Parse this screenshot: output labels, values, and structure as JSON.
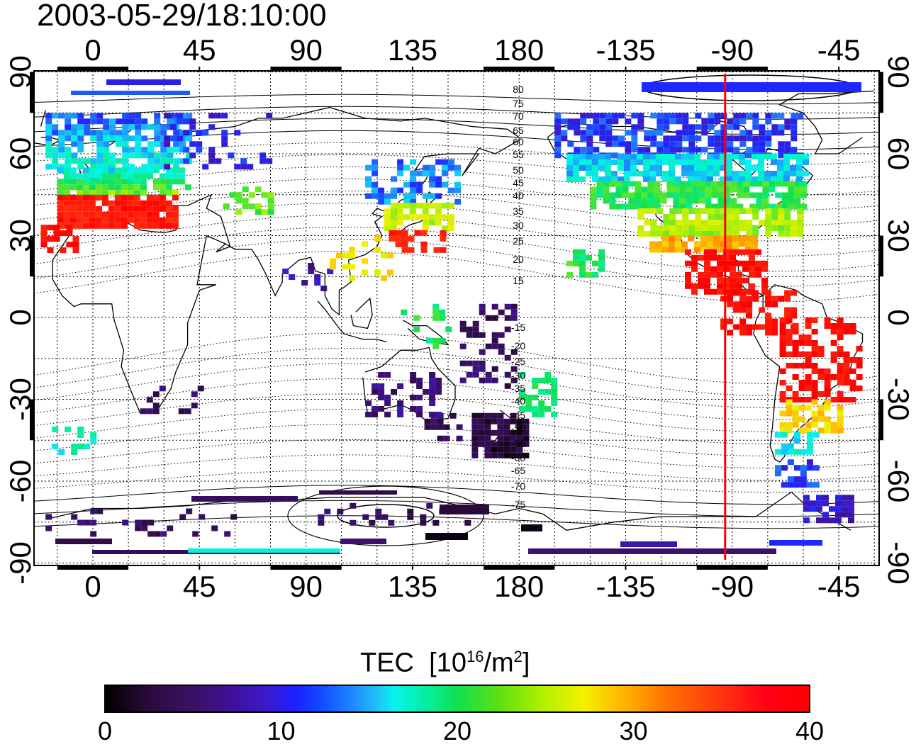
{
  "timestamp": "2003-05-29/18:10:00",
  "map": {
    "x_ticks_top": [
      "0",
      "45",
      "90",
      "135",
      "180",
      "-135",
      "-90",
      "-45"
    ],
    "x_ticks_bottom": [
      "0",
      "45",
      "90",
      "135",
      "180",
      "-135",
      "-90",
      "-45"
    ],
    "y_ticks_left": [
      "90",
      "60",
      "30",
      "0",
      "-30",
      "-60",
      "-90"
    ],
    "y_ticks_right": [
      "90",
      "60",
      "30",
      "0",
      "-30",
      "-60",
      "-90"
    ],
    "marker_longitude": -93,
    "marker_color": "#ff0000",
    "contour_labels_north": [
      "80",
      "75",
      "70",
      "65",
      "60",
      "55",
      "50",
      "45",
      "40",
      "35",
      "30",
      "25",
      "20",
      "15"
    ],
    "contour_labels_south": [
      "-15",
      "-20",
      "-25",
      "-30",
      "-35",
      "-40",
      "-45",
      "-50",
      "-55",
      "-60",
      "-65",
      "-70",
      "-75"
    ]
  },
  "colorbar": {
    "title": "TEC",
    "unit_base": "[10",
    "unit_exp": "16",
    "unit_mid": "/m",
    "unit_exp2": "2",
    "unit_end": "]",
    "min": 0,
    "max": 40,
    "ticks": [
      "0",
      "10",
      "20",
      "30",
      "40"
    ]
  }
}
